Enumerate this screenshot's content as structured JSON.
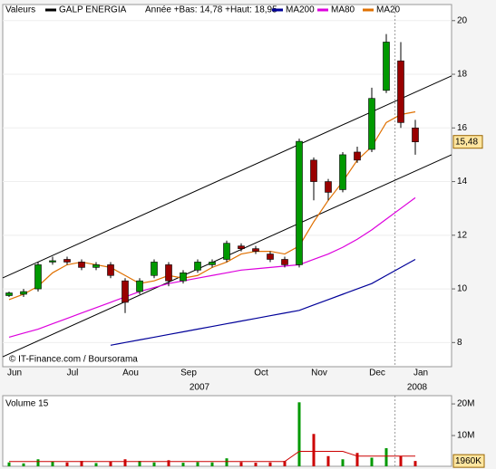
{
  "chart_data": [
    {
      "type": "candlestick",
      "header": "Valeurs",
      "note": "Année +Bas: 14,78 +Haut: 18,95",
      "watermark": "© IT-Finance.com / Boursorama",
      "categories": [
        "Jun",
        null,
        null,
        null,
        "Jul",
        null,
        null,
        null,
        "Aou",
        null,
        null,
        null,
        "Sep",
        null,
        null,
        null,
        null,
        "Oct",
        null,
        null,
        null,
        "Nov",
        null,
        null,
        null,
        "Dec",
        null,
        null,
        "Jan"
      ],
      "years": [
        "2007",
        "2008"
      ],
      "ylim": [
        7.1,
        20.6
      ],
      "yticks": [
        8,
        10,
        12,
        14,
        16,
        18,
        20
      ],
      "grid": true,
      "up_color": "#009900",
      "down_color": "#990000",
      "last_price": {
        "value": 15.48,
        "label": "15,48"
      },
      "vline": 26.6,
      "trendlines": [
        {
          "x": [
            -0.44,
            30.5
          ],
          "y": [
            10.41,
            17.94
          ]
        },
        {
          "x": [
            -0.44,
            30.5
          ],
          "y": [
            7.47,
            15.0
          ]
        }
      ],
      "series": [
        {
          "name": "GALP ENERGIA",
          "color": "#000000",
          "open": [
            9.75,
            9.8,
            10.0,
            11.0,
            11.1,
            11.0,
            10.8,
            10.9,
            10.3,
            9.9,
            10.5,
            10.9,
            10.3,
            10.7,
            10.9,
            11.1,
            11.6,
            11.5,
            11.3,
            11.1,
            10.9,
            14.8,
            14.0,
            13.7,
            15.1,
            15.2,
            17.4,
            18.5,
            16.0
          ],
          "high": [
            9.9,
            10.0,
            11.0,
            11.2,
            11.2,
            11.1,
            11.0,
            11.0,
            10.4,
            10.4,
            11.1,
            11.0,
            10.7,
            11.1,
            11.1,
            11.8,
            11.7,
            11.6,
            11.4,
            11.2,
            15.6,
            14.9,
            14.1,
            15.1,
            15.3,
            17.5,
            19.5,
            19.2,
            16.3
          ],
          "low": [
            9.7,
            9.7,
            9.9,
            10.9,
            10.9,
            10.7,
            10.7,
            10.4,
            9.1,
            9.8,
            10.4,
            10.1,
            10.2,
            10.6,
            10.8,
            11.0,
            11.4,
            11.3,
            11.0,
            10.8,
            10.8,
            13.3,
            13.3,
            13.6,
            14.7,
            15.1,
            17.3,
            16.0,
            15.0
          ],
          "close": [
            9.85,
            9.9,
            10.9,
            11.05,
            11.0,
            10.8,
            10.9,
            10.5,
            9.5,
            10.3,
            11.0,
            10.3,
            10.6,
            11.0,
            11.0,
            11.7,
            11.5,
            11.4,
            11.1,
            10.9,
            15.5,
            14.0,
            13.6,
            15.0,
            14.8,
            17.1,
            19.2,
            16.2,
            15.48
          ]
        },
        {
          "name": "MA200",
          "color": "#000099",
          "values": [
            null,
            null,
            null,
            null,
            null,
            null,
            null,
            7.9,
            8.0,
            8.1,
            8.2,
            8.3,
            8.4,
            8.5,
            8.6,
            8.7,
            8.8,
            8.9,
            9.0,
            9.1,
            9.2,
            9.4,
            9.6,
            9.8,
            10.0,
            10.2,
            10.5,
            10.8,
            11.1
          ]
        },
        {
          "name": "MA80",
          "color": "#dd00dd",
          "values": [
            8.2,
            8.35,
            8.5,
            8.7,
            8.9,
            9.1,
            9.3,
            9.5,
            9.7,
            9.9,
            10.05,
            10.2,
            10.3,
            10.4,
            10.5,
            10.6,
            10.7,
            10.75,
            10.8,
            10.85,
            10.9,
            11.1,
            11.3,
            11.55,
            11.85,
            12.2,
            12.6,
            13.0,
            13.4
          ]
        },
        {
          "name": "MA20",
          "color": "#e07000",
          "values": [
            9.6,
            9.8,
            10.1,
            10.6,
            10.9,
            11.0,
            10.9,
            10.8,
            10.5,
            10.2,
            10.3,
            10.5,
            10.4,
            10.5,
            10.8,
            11.0,
            11.3,
            11.4,
            11.4,
            11.3,
            11.6,
            12.5,
            13.3,
            14.0,
            14.8,
            15.3,
            16.2,
            16.5,
            16.6
          ]
        }
      ]
    },
    {
      "type": "bar",
      "title": "Volume 15",
      "ylim": [
        0,
        22600000
      ],
      "yticks": [
        {
          "value": 10000000,
          "label": "10M"
        },
        {
          "value": 20000000,
          "label": "20M"
        }
      ],
      "up_color": "#009900",
      "down_color": "#cc0000",
      "values": [
        1500000,
        1200000,
        2500000,
        1800000,
        1500000,
        2000000,
        1300000,
        1800000,
        2500000,
        2000000,
        1500000,
        2200000,
        1400000,
        1600000,
        1500000,
        2800000,
        1600000,
        1400000,
        1500000,
        2000000,
        20500000,
        10500000,
        3500000,
        2500000,
        4500000,
        3000000,
        6000000,
        3500000,
        1960000
      ],
      "ma": [
        1800000,
        1800000,
        1800000,
        1800000,
        1800000,
        1800000,
        1800000,
        1800000,
        1800000,
        1800000,
        1800000,
        1800000,
        1800000,
        1800000,
        1800000,
        1800000,
        1800000,
        1800000,
        1800000,
        1800000,
        5000000,
        5000000,
        5000000,
        5000000,
        3500000,
        3500000,
        3500000,
        3500000,
        3500000
      ],
      "ma_color": "#cc0000",
      "last": {
        "value": 1960000,
        "label": "1960K"
      }
    }
  ]
}
